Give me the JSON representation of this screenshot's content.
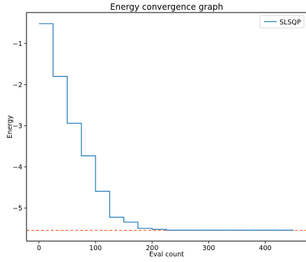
{
  "chart_data": {
    "type": "line",
    "title": "Energy convergence graph",
    "xlabel": "Eval count",
    "ylabel": "Energy",
    "xlim": [
      -22,
      472
    ],
    "ylim": [
      -5.8,
      -0.25
    ],
    "xticks": [
      0,
      100,
      200,
      300,
      400
    ],
    "xtick_labels": [
      "0",
      "100",
      "200",
      "300",
      "400"
    ],
    "yticks": [
      -1,
      -2,
      -3,
      -4,
      -5
    ],
    "ytick_labels": [
      "−1",
      "−2",
      "−3",
      "−4",
      "−5"
    ],
    "grid": false,
    "legend": {
      "position": "top-right"
    },
    "series": [
      {
        "name": "SLSQP",
        "color": "#1f77b4",
        "style": "step",
        "x": [
          0,
          25,
          25,
          50,
          50,
          75,
          75,
          100,
          100,
          125,
          125,
          150,
          150,
          175,
          175,
          200,
          200,
          225,
          225,
          450
        ],
        "y": [
          -0.52,
          -0.52,
          -1.8,
          -1.8,
          -2.94,
          -2.94,
          -3.73,
          -3.73,
          -4.59,
          -4.59,
          -5.22,
          -5.22,
          -5.34,
          -5.34,
          -5.49,
          -5.49,
          -5.515,
          -5.515,
          -5.535,
          -5.535
        ]
      }
    ],
    "reference_line": {
      "orientation": "horizontal",
      "y": -5.54,
      "color": "#ff4500",
      "style": "dashed"
    }
  }
}
